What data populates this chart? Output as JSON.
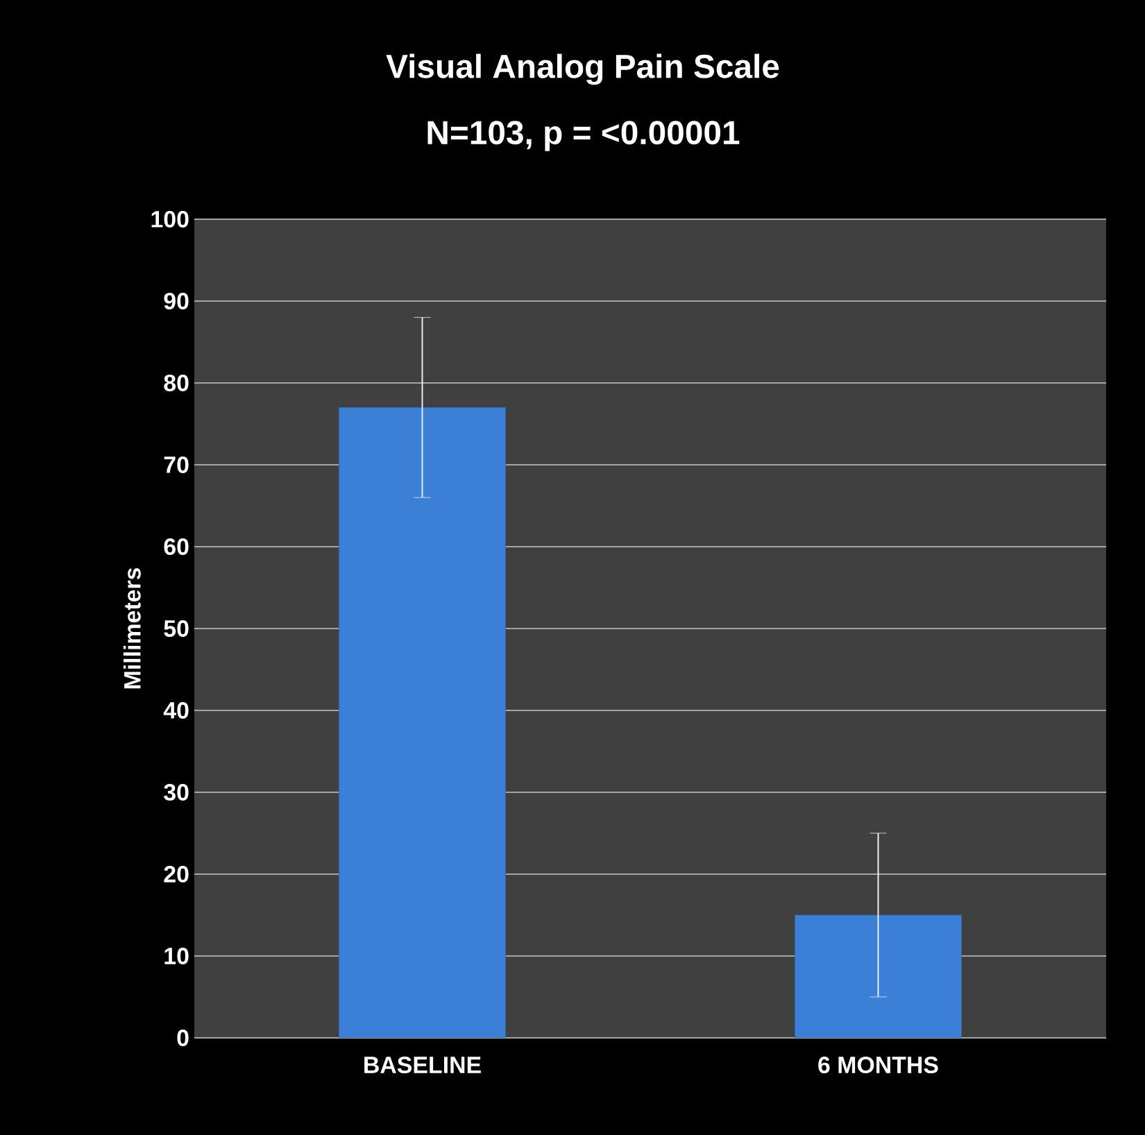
{
  "chart_data": {
    "type": "bar",
    "title": "Visual Analog Pain Scale",
    "subtitle": "N=103, p = <0.00001",
    "ylabel": "Millimeters",
    "categories": [
      "BASELINE",
      "6 MONTHS"
    ],
    "values": [
      77,
      15
    ],
    "color": "#3c7fd6",
    "errors": [
      [
        66,
        88
      ],
      [
        5,
        25
      ]
    ],
    "ylim": [
      0,
      100
    ],
    "yticks": [
      0,
      10,
      20,
      30,
      40,
      50,
      60,
      70,
      80,
      90,
      100
    ],
    "grid": "y"
  }
}
